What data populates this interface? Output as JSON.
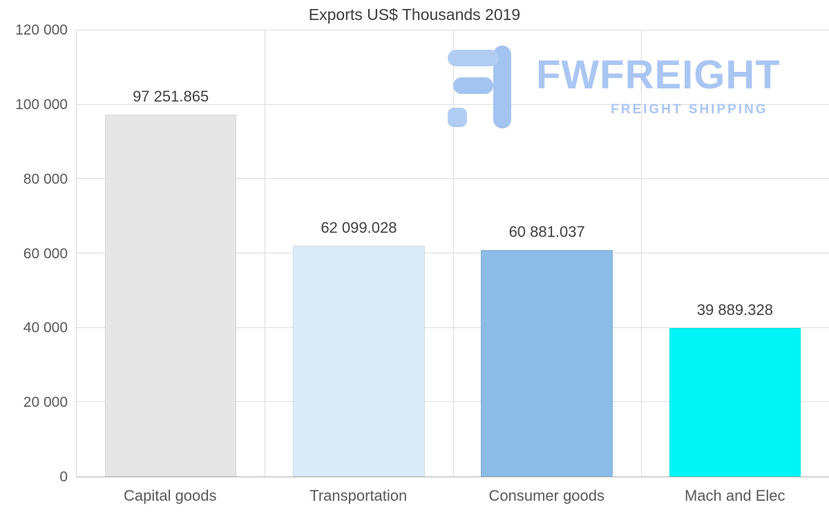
{
  "chart_data": {
    "type": "bar",
    "title": "Exports US$ Thousands 2019",
    "categories": [
      "Capital goods",
      "Transportation",
      "Consumer goods",
      "Mach and Elec"
    ],
    "values": [
      97251.865,
      62099.028,
      60881.037,
      39889.328
    ],
    "value_labels": [
      "97 251.865",
      "62 099.028",
      "60 881.037",
      "39 889.328"
    ],
    "bar_colors": [
      "#e6e6e6",
      "#dcebf8",
      "#8cbce6",
      "#00f6f6"
    ],
    "ylim": [
      0,
      120000
    ],
    "yticks": [
      0,
      20000,
      40000,
      60000,
      80000,
      100000,
      120000
    ],
    "ytick_labels": [
      "0",
      "20 000",
      "40 000",
      "60 000",
      "80 000",
      "100 000",
      "120 000"
    ],
    "grid": true,
    "grid_color": "#dcdcdc",
    "legend": "none",
    "xlabel": "",
    "ylabel": ""
  },
  "watermark": {
    "brand": "FWFREIGHT",
    "tagline": "FREIGHT SHIPPING",
    "color": "#a9c6f2"
  }
}
